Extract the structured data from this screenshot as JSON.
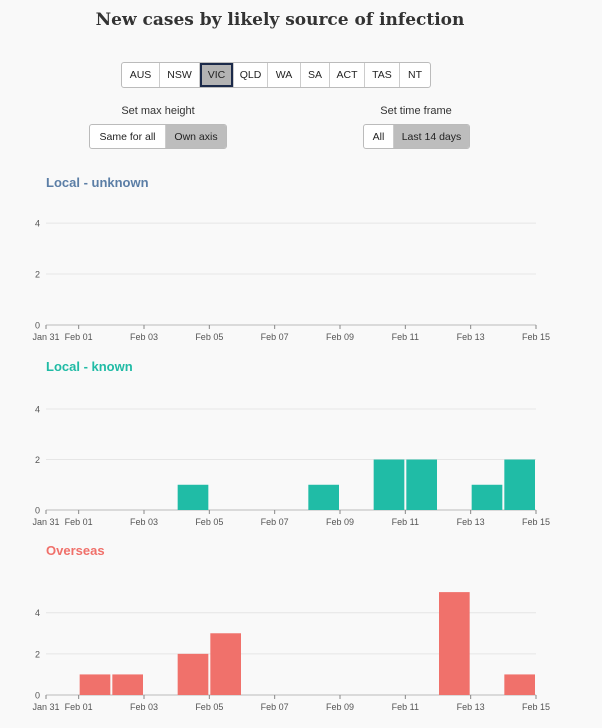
{
  "page": {
    "title": "New cases by likely source of infection"
  },
  "states": {
    "options": [
      "AUS",
      "NSW",
      "VIC",
      "QLD",
      "WA",
      "SA",
      "ACT",
      "TAS",
      "NT"
    ],
    "selected": "VIC"
  },
  "max_height": {
    "label": "Set max height",
    "options": [
      "Same for all",
      "Own axis"
    ],
    "selected": "Own axis"
  },
  "time_frame": {
    "label": "Set time frame",
    "options": [
      "All",
      "Last 14 days"
    ],
    "selected": "Last 14 days"
  },
  "chart_data": [
    {
      "type": "bar",
      "title": "Local - unknown",
      "color": "#5b7ea6",
      "bar_color": "#5b7ea6",
      "x": [
        "Jan 31",
        "Feb 01",
        "Feb 02",
        "Feb 03",
        "Feb 04",
        "Feb 05",
        "Feb 06",
        "Feb 07",
        "Feb 08",
        "Feb 09",
        "Feb 10",
        "Feb 11",
        "Feb 12",
        "Feb 13",
        "Feb 14"
      ],
      "values": [
        0,
        0,
        0,
        0,
        0,
        0,
        0,
        0,
        0,
        0,
        0,
        0,
        0,
        0,
        0
      ],
      "xticks": [
        "Jan 31",
        "Feb 01",
        "Feb 03",
        "Feb 05",
        "Feb 07",
        "Feb 09",
        "Feb 11",
        "Feb 13",
        "Feb 15"
      ],
      "yticks": [
        0,
        2,
        4
      ],
      "ylim": [
        0,
        4.2
      ],
      "grid": true
    },
    {
      "type": "bar",
      "title": "Local - known",
      "color": "#20bba5",
      "bar_color": "#20bca6",
      "x": [
        "Jan 31",
        "Feb 01",
        "Feb 02",
        "Feb 03",
        "Feb 04",
        "Feb 05",
        "Feb 06",
        "Feb 07",
        "Feb 08",
        "Feb 09",
        "Feb 10",
        "Feb 11",
        "Feb 12",
        "Feb 13",
        "Feb 14"
      ],
      "values": [
        0,
        0,
        0,
        0,
        1,
        0,
        0,
        0,
        1,
        0,
        2,
        2,
        0,
        1,
        2
      ],
      "xticks": [
        "Jan 31",
        "Feb 01",
        "Feb 03",
        "Feb 05",
        "Feb 07",
        "Feb 09",
        "Feb 11",
        "Feb 13",
        "Feb 15"
      ],
      "yticks": [
        0,
        2,
        4
      ],
      "ylim": [
        0,
        4.2
      ],
      "grid": true
    },
    {
      "type": "bar",
      "title": "Overseas",
      "color": "#f0706a",
      "bar_color": "#f0716b",
      "x": [
        "Jan 31",
        "Feb 01",
        "Feb 02",
        "Feb 03",
        "Feb 04",
        "Feb 05",
        "Feb 06",
        "Feb 07",
        "Feb 08",
        "Feb 09",
        "Feb 10",
        "Feb 11",
        "Feb 12",
        "Feb 13",
        "Feb 14"
      ],
      "values": [
        0,
        1,
        1,
        0,
        2,
        3,
        0,
        0,
        0,
        0,
        0,
        0,
        5,
        0,
        1
      ],
      "xticks": [
        "Jan 31",
        "Feb 01",
        "Feb 03",
        "Feb 05",
        "Feb 07",
        "Feb 09",
        "Feb 11",
        "Feb 13",
        "Feb 15"
      ],
      "yticks": [
        0,
        2,
        4
      ],
      "ylim": [
        0,
        5.2
      ],
      "grid": true
    }
  ]
}
